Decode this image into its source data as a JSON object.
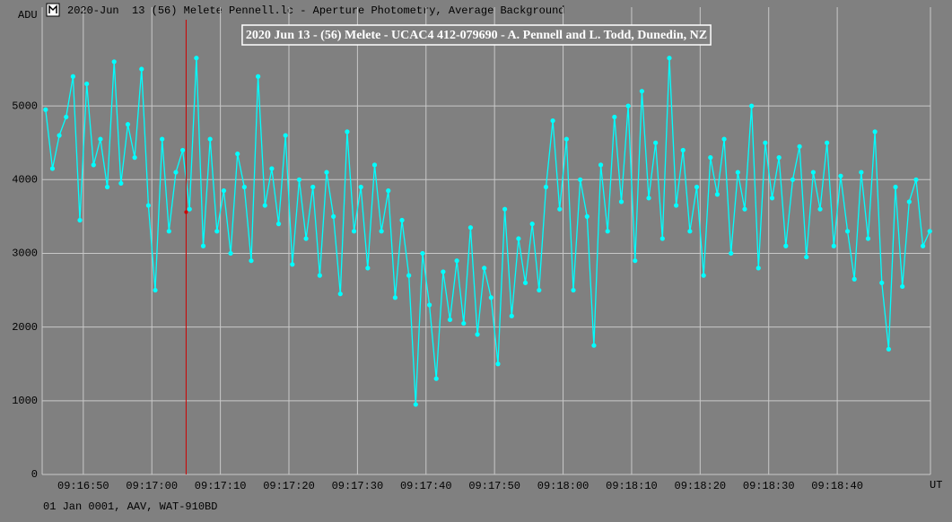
{
  "window_title": "2020-Jun  13 (56) Melete Pennell.lc - Aperture Photometry, Average Background",
  "footer": "01 Jan 0001, AAV, WAT-910BD",
  "chart_data": {
    "type": "line",
    "title": "2020 Jun 13 - (56) Melete - UCAC4 412-079690 - A. Pennell and L. Todd, Dunedin, NZ",
    "ylabel": "ADU",
    "xlabel": "UT",
    "color": "#00ffff",
    "grid": true,
    "xlim": [
      44.0,
      173.6
    ],
    "ylim": [
      0,
      6340
    ],
    "yticks": [
      0,
      1000,
      2000,
      3000,
      4000,
      5000
    ],
    "xticks": [
      {
        "value": 50,
        "label": "09:16:50"
      },
      {
        "value": 60,
        "label": "09:17:00"
      },
      {
        "value": 70,
        "label": "09:17:10"
      },
      {
        "value": 80,
        "label": "09:17:20"
      },
      {
        "value": 90,
        "label": "09:17:30"
      },
      {
        "value": 100,
        "label": "09:17:40"
      },
      {
        "value": 110,
        "label": "09:17:50"
      },
      {
        "value": 120,
        "label": "09:18:00"
      },
      {
        "value": 130,
        "label": "09:18:10"
      },
      {
        "value": 140,
        "label": "09:18:20"
      },
      {
        "value": 150,
        "label": "09:18:30"
      },
      {
        "value": 160,
        "label": "09:18:40"
      }
    ],
    "cursor": {
      "x": 65.0,
      "y": 3560,
      "color": "#cc0000"
    },
    "x": [
      44.5,
      45.5,
      46.5,
      47.5,
      48.5,
      49.5,
      50.5,
      51.5,
      52.5,
      53.5,
      54.5,
      55.5,
      56.5,
      57.5,
      58.5,
      59.5,
      60.5,
      61.5,
      62.5,
      63.5,
      64.5,
      65.5,
      66.5,
      67.5,
      68.5,
      69.5,
      70.5,
      71.5,
      72.5,
      73.5,
      74.5,
      75.5,
      76.5,
      77.5,
      78.5,
      79.5,
      80.5,
      81.5,
      82.5,
      83.5,
      84.5,
      85.5,
      86.5,
      87.5,
      88.5,
      89.5,
      90.5,
      91.5,
      92.5,
      93.5,
      94.5,
      95.5,
      96.5,
      97.5,
      98.5,
      99.5,
      100.5,
      101.5,
      102.5,
      103.5,
      104.5,
      105.5,
      106.5,
      107.5,
      108.5,
      109.5,
      110.5,
      111.5,
      112.5,
      113.5,
      114.5,
      115.5,
      116.5,
      117.5,
      118.5,
      119.5,
      120.5,
      121.5,
      122.5,
      123.5,
      124.5,
      125.5,
      126.5,
      127.5,
      128.5,
      129.5,
      130.5,
      131.5,
      132.5,
      133.5,
      134.5,
      135.5,
      136.5,
      137.5,
      138.5,
      139.5,
      140.5,
      141.5,
      142.5,
      143.5,
      144.5,
      145.5,
      146.5,
      147.5,
      148.5,
      149.5,
      150.5,
      151.5,
      152.5,
      153.5,
      154.5,
      155.5,
      156.5,
      157.5,
      158.5,
      159.5,
      160.5,
      161.5,
      162.5,
      163.5,
      164.5,
      165.5,
      166.5,
      167.5,
      168.5,
      169.5,
      170.5,
      171.5,
      172.5,
      173.5
    ],
    "values": [
      4950,
      4150,
      4600,
      4850,
      5400,
      3450,
      5300,
      4200,
      4550,
      3900,
      5600,
      3950,
      4750,
      4300,
      5500,
      3650,
      2500,
      4550,
      3300,
      4100,
      4400,
      3600,
      5650,
      3100,
      4550,
      3300,
      3850,
      3000,
      4350,
      3900,
      2900,
      5400,
      3650,
      4150,
      3400,
      4600,
      2850,
      4000,
      3200,
      3900,
      2700,
      4100,
      3500,
      2450,
      4650,
      3300,
      3900,
      2800,
      4200,
      3300,
      3850,
      2400,
      3450,
      2700,
      950,
      3000,
      2300,
      1300,
      2750,
      2100,
      2900,
      2050,
      3350,
      1900,
      2800,
      2400,
      1500,
      3600,
      2150,
      3200,
      2600,
      3400,
      2500,
      3900,
      4800,
      3600,
      4550,
      2500,
      4000,
      3500,
      1750,
      4200,
      3300,
      4850,
      3700,
      5000,
      2900,
      5200,
      3750,
      4500,
      3200,
      5650,
      3650,
      4400,
      3300,
      3900,
      2700,
      4300,
      3800,
      4550,
      3000,
      4100,
      3600,
      5000,
      2800,
      4500,
      3750,
      4300,
      3100,
      4000,
      4450,
      2950,
      4100,
      3600,
      4500,
      3100,
      4050,
      3300,
      2650,
      4100,
      3200,
      4650,
      2600,
      1700,
      3900,
      2550,
      3700,
      4000,
      3100,
      3300
    ]
  }
}
